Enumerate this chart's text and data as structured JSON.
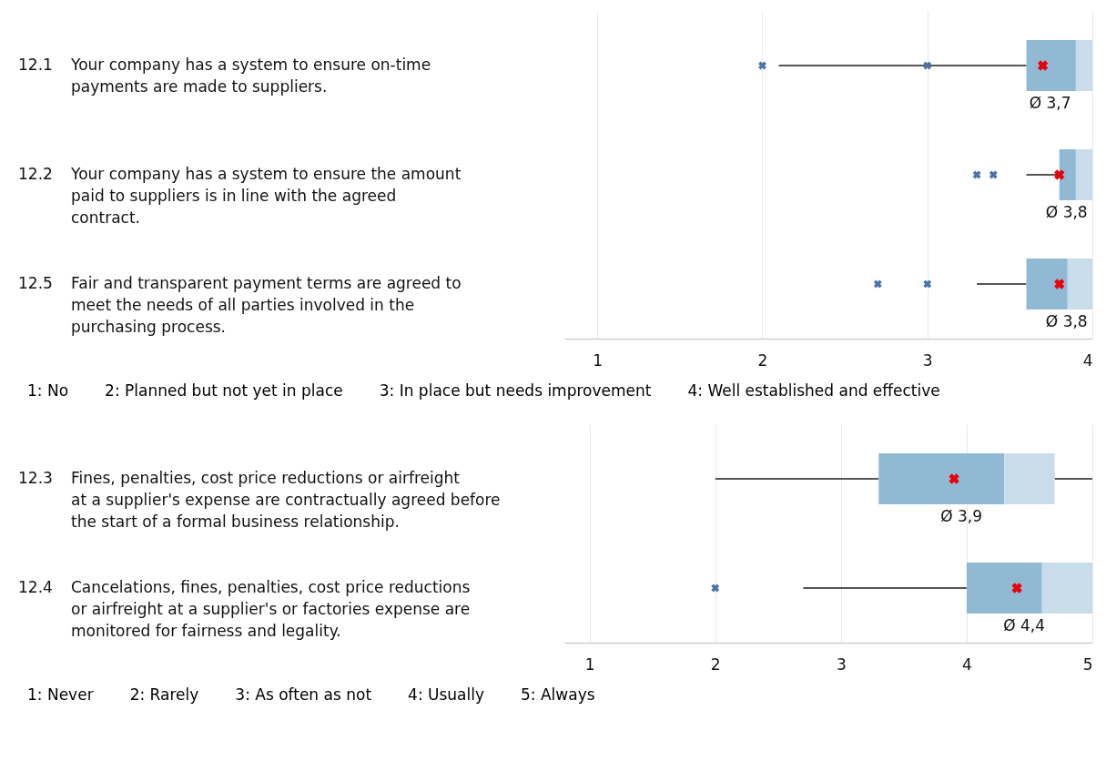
{
  "chart_data": [
    {
      "type": "box",
      "orientation": "horizontal",
      "categories": [
        "12.1 Your company has a system to ensure on-time payments are made to suppliers.",
        "12.2 Your company has a system to ensure the amount paid to suppliers is in line with the agreed contract.",
        "12.5 Fair and transparent payment terms are agreed to meet the needs of all parties involved in the purchasing process."
      ],
      "series": [
        {
          "color": "#92b9d3",
          "boxes": [
            {
              "low": 2.1,
              "q1": 3.6,
              "median": 3.9,
              "q3": 4,
              "high": 4,
              "mean": 3.7,
              "outliers": [
                2,
                3
              ]
            },
            {
              "low": 3.6,
              "q1": 3.8,
              "median": 3.9,
              "q3": 4,
              "high": 4,
              "mean": 3.8,
              "outliers": [
                3.3,
                3.4
              ]
            },
            {
              "low": 3.3,
              "q1": 3.6,
              "median": 3.85,
              "q3": 4,
              "high": 4,
              "mean": 3.8,
              "outliers": [
                2.7,
                3
              ]
            }
          ]
        }
      ],
      "xlim": [
        0.8,
        4
      ],
      "xticks": [
        1,
        2,
        3,
        4
      ],
      "grid": "x",
      "marker": "cross",
      "annotations": [
        "Ø 3,7",
        "Ø 3,8",
        "Ø 3,8",
        "1: No",
        "2: Planned but not yet in place",
        "3: In place but needs improvement",
        "4: Well established and effective"
      ]
    },
    {
      "type": "box",
      "orientation": "horizontal",
      "categories": [
        "12.3 Fines, penalties, cost price reductions or airfreight at a supplier's expense are contractually agreed before the start of a formal business relationship.",
        "12.4 Cancelations, fines, penalties, cost price reductions or airfreight at a supplier's or factories expense are monitored for fairness and legality."
      ],
      "series": [
        {
          "color": "#92b9d3",
          "boxes": [
            {
              "low": 2,
              "q1": 3.3,
              "median": 4.3,
              "q3": 4.7,
              "high": 5,
              "mean": 3.9
            },
            {
              "low": 2.7,
              "q1": 4,
              "median": 4.6,
              "q3": 5,
              "high": 5,
              "mean": 4.4,
              "outliers": [
                2
              ]
            }
          ]
        }
      ],
      "xlim": [
        0.8,
        5
      ],
      "xticks": [
        1,
        2,
        3,
        4,
        5
      ],
      "grid": "x",
      "marker": "cross",
      "annotations": [
        "Ø 3,9",
        "Ø 4,4",
        "1: Never",
        "2: Rarely",
        "3: As often as not",
        "4: Usually",
        "5: Always"
      ]
    }
  ]
}
